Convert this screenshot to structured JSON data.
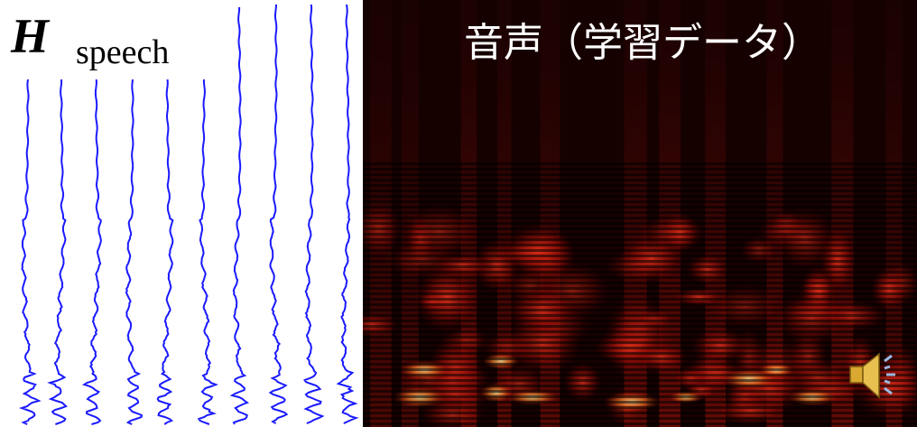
{
  "left_panel": {
    "label": "H",
    "subscript": "speech"
  },
  "right_panel": {
    "title": "音声（学習データ）"
  }
}
